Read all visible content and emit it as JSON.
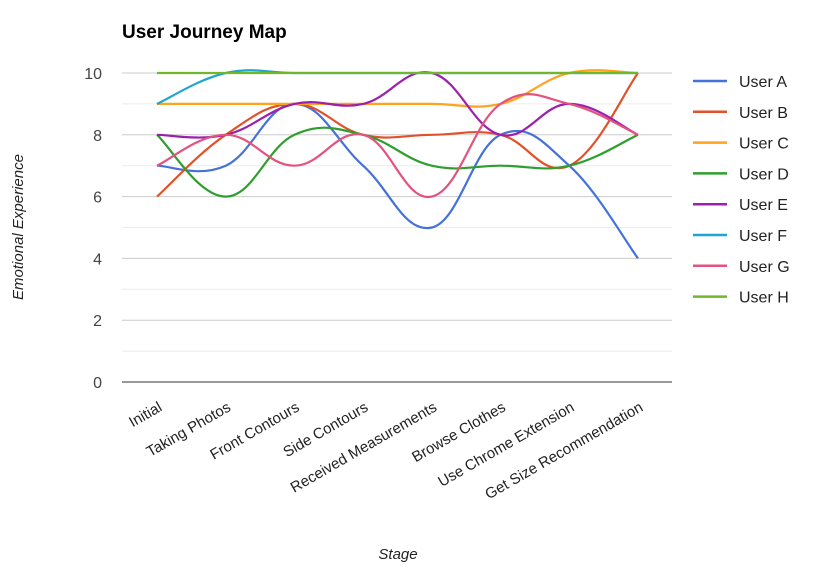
{
  "chart_data": {
    "type": "line",
    "title": "User Journey Map",
    "xlabel": "Stage",
    "ylabel": "Emotional Experience",
    "ylim": [
      0,
      10
    ],
    "yticks": [
      0,
      2,
      4,
      6,
      8,
      10
    ],
    "grid": true,
    "smooth": true,
    "legend_position": "right",
    "categories": [
      "Initial",
      "Taking Photos",
      "Front Contours",
      "Side Contours",
      "Received Measurements",
      "Browse Clothes",
      "Use Chrome Extension",
      "Get Size Recommendation"
    ],
    "series": [
      {
        "name": "User A",
        "color": "#4472db",
        "values": [
          7,
          7,
          9,
          7,
          5,
          8,
          7,
          4
        ]
      },
      {
        "name": "User B",
        "color": "#e2522a",
        "values": [
          6,
          8,
          9,
          8,
          8,
          8,
          7,
          10
        ]
      },
      {
        "name": "User C",
        "color": "#ffa21d",
        "values": [
          9,
          9,
          9,
          9,
          9,
          9,
          10,
          10
        ]
      },
      {
        "name": "User D",
        "color": "#2e9e2e",
        "values": [
          8,
          6,
          8,
          8,
          7,
          7,
          7,
          8
        ]
      },
      {
        "name": "User E",
        "color": "#9c1fae",
        "values": [
          8,
          8,
          9,
          9,
          10,
          8,
          9,
          8
        ]
      },
      {
        "name": "User F",
        "color": "#1ea6cc",
        "values": [
          9,
          10,
          10,
          10,
          10,
          10,
          10,
          10
        ]
      },
      {
        "name": "User G",
        "color": "#e4527e",
        "values": [
          7,
          8,
          7,
          8,
          6,
          9,
          9,
          8
        ]
      },
      {
        "name": "User H",
        "color": "#72b62c",
        "values": [
          10,
          10,
          10,
          10,
          10,
          10,
          10,
          10
        ]
      }
    ]
  }
}
